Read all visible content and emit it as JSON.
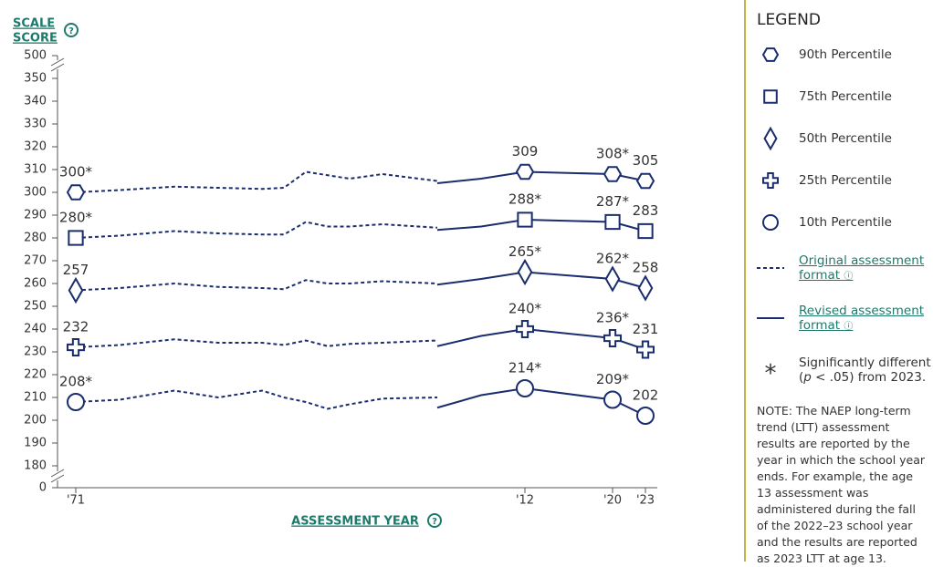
{
  "chart_data": {
    "type": "line",
    "y_axis_title_line1": "SCALE",
    "y_axis_title_line2": "SCORE",
    "x_axis_title": "ASSESSMENT YEAR",
    "ylim": [
      180,
      350
    ],
    "yticks": [
      180,
      190,
      200,
      210,
      220,
      230,
      240,
      250,
      260,
      270,
      280,
      290,
      300,
      310,
      320,
      330,
      340,
      350
    ],
    "ybreak_low": 0,
    "ybreak_high": 500,
    "xlim": [
      1971,
      2023
    ],
    "xticks": [
      {
        "value": 1971,
        "label": "'71"
      },
      {
        "value": 2012,
        "label": "'12"
      },
      {
        "value": 2020,
        "label": "'20"
      },
      {
        "value": 2023,
        "label": "'23"
      }
    ],
    "color": "#1a2d6e",
    "x_original": [
      1971,
      1975,
      1980,
      1984,
      1988,
      1990,
      1992,
      1994,
      1996,
      1999,
      2004
    ],
    "x_revised": [
      2004,
      2008,
      2012,
      2020,
      2023
    ],
    "series": [
      {
        "name": "90th Percentile",
        "marker": "hexagon",
        "original": [
          300,
          301,
          302.5,
          302,
          301.5,
          302,
          309,
          307.5,
          306,
          308,
          305
        ],
        "original_value_labels": [
          "300*",
          null,
          null,
          null,
          null,
          null,
          null,
          null,
          null,
          null,
          null
        ],
        "revised": [
          304,
          306,
          309,
          308,
          305
        ],
        "revised_value_labels": [
          null,
          null,
          "309",
          "308*",
          "305"
        ]
      },
      {
        "name": "75th Percentile",
        "marker": "square",
        "original": [
          280,
          281,
          283,
          282,
          281.5,
          281.5,
          287,
          285,
          285,
          286,
          284.5
        ],
        "original_value_labels": [
          "280*",
          null,
          null,
          null,
          null,
          null,
          null,
          null,
          null,
          null,
          null
        ],
        "revised": [
          283.5,
          285,
          288,
          287,
          283
        ],
        "revised_value_labels": [
          null,
          null,
          "288*",
          "287*",
          "283"
        ]
      },
      {
        "name": "50th Percentile",
        "marker": "diamond",
        "original": [
          257,
          258,
          260,
          258.5,
          258,
          257.5,
          261.5,
          260,
          260,
          261,
          260
        ],
        "original_value_labels": [
          "257",
          null,
          null,
          null,
          null,
          null,
          null,
          null,
          null,
          null,
          null
        ],
        "revised": [
          259.5,
          262,
          265,
          262,
          258
        ],
        "revised_value_labels": [
          null,
          null,
          "265*",
          "262*",
          "258"
        ]
      },
      {
        "name": "25th Percentile",
        "marker": "plus",
        "original": [
          232,
          233,
          235.5,
          234,
          234,
          233,
          235,
          232.5,
          233.5,
          234,
          235
        ],
        "original_value_labels": [
          "232",
          null,
          null,
          null,
          null,
          null,
          null,
          null,
          null,
          null,
          null
        ],
        "revised": [
          232.5,
          237,
          240,
          236,
          231
        ],
        "revised_value_labels": [
          null,
          null,
          "240*",
          "236*",
          "231"
        ]
      },
      {
        "name": "10th Percentile",
        "marker": "circle",
        "original": [
          208,
          209,
          213,
          210,
          213,
          210,
          208,
          205,
          207,
          209.5,
          210
        ],
        "original_value_labels": [
          "208*",
          null,
          null,
          null,
          null,
          null,
          null,
          null,
          null,
          null,
          null
        ],
        "revised": [
          205.5,
          211,
          214,
          209,
          202
        ],
        "revised_value_labels": [
          null,
          null,
          "214*",
          "209*",
          "202"
        ]
      }
    ]
  },
  "legend": {
    "title": "LEGEND",
    "original_line1": "Original assessment",
    "original_line2": "format",
    "revised_line1": "Revised assessment",
    "revised_line2": "format",
    "sig_symbol": "*",
    "sig_line1": "Significantly different",
    "sig_pre": "(",
    "sig_italic": "p",
    "sig_post": " < .05) from 2023.",
    "note": "NOTE: The NAEP long-term trend (LTT) assessment results are reported by the year in which the school year ends. For example, the age 13 assessment was administered during the fall of the 2022–23 school year and the results are reported as 2023 LTT at age 13."
  }
}
